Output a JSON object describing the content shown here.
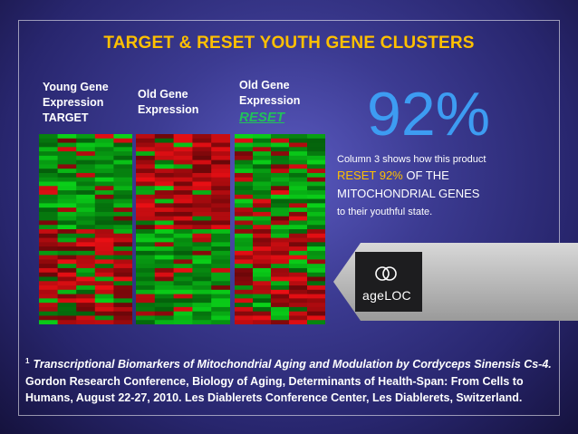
{
  "title": "TARGET & RESET YOUTH GENE CLUSTERS",
  "columns": [
    {
      "lines": [
        "Young Gene",
        "Expression",
        "TARGET"
      ]
    },
    {
      "lines": [
        "Old Gene",
        "Expression"
      ]
    },
    {
      "lines": [
        "Old Gene",
        "Expression"
      ],
      "reset": "RESET"
    }
  ],
  "stat": {
    "value": "92%",
    "line1": "Column 3 shows how this product",
    "highlight": "RESET 92%",
    "line2_rest": " OF THE",
    "line3": "MITOCHONDRIAL GENES",
    "line4": "to their youthful state."
  },
  "logo": {
    "text": "ageLOC",
    "icon": "ageloc-rings-icon"
  },
  "citation": {
    "sup": "1",
    "italic": "Transcriptional Biomarkers of Mitochondrial Aging and Modulation by Cordyceps Sinensis Cs-4.",
    "rest": " Gordon Research Conference, Biology of Aging, Determinants of Health-Span: From Cells to Humans, August 22-27, 2010. Les Diablerets Conference Center, Les Diablerets, Switzerland."
  },
  "colors": {
    "title": "#ffc000",
    "percent": "#3d9cf2",
    "reset": "#22c15a",
    "highlight": "#ffc000",
    "heat_red": "#e8141e",
    "heat_green": "#13c524"
  }
}
